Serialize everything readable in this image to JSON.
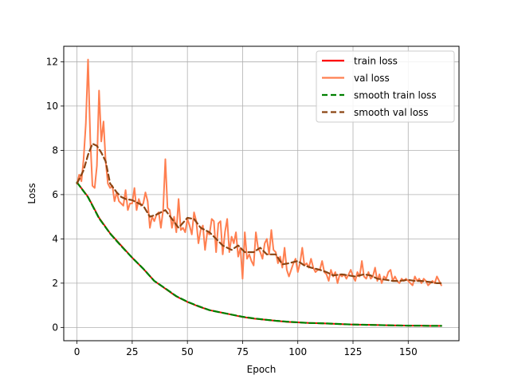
{
  "chart_data": {
    "type": "line",
    "title": "",
    "xlabel": "Epoch",
    "ylabel": "Loss",
    "xlim": [
      -6,
      173
    ],
    "ylim": [
      -0.6,
      12.7
    ],
    "xticks": [
      0,
      25,
      50,
      75,
      100,
      125,
      150
    ],
    "yticks": [
      0,
      2,
      4,
      6,
      8,
      10,
      12
    ],
    "grid": true,
    "legend_position": "upper right",
    "series": [
      {
        "name": "train loss",
        "color": "#ff0000",
        "style": "solid",
        "x": [
          0,
          5,
          10,
          15,
          20,
          25,
          30,
          35,
          40,
          45,
          50,
          55,
          60,
          65,
          70,
          75,
          80,
          85,
          90,
          95,
          100,
          105,
          110,
          115,
          120,
          125,
          130,
          135,
          140,
          145,
          150,
          155,
          160,
          165
        ],
        "values": [
          6.55,
          5.9,
          4.95,
          4.25,
          3.7,
          3.15,
          2.65,
          2.1,
          1.75,
          1.4,
          1.15,
          0.95,
          0.78,
          0.68,
          0.58,
          0.47,
          0.4,
          0.35,
          0.3,
          0.25,
          0.23,
          0.2,
          0.19,
          0.17,
          0.15,
          0.13,
          0.12,
          0.11,
          0.1,
          0.09,
          0.08,
          0.08,
          0.07,
          0.07
        ]
      },
      {
        "name": "val loss",
        "color": "#ff7f50",
        "style": "solid",
        "x": [
          0,
          1,
          2,
          3,
          4,
          5,
          6,
          7,
          8,
          9,
          10,
          11,
          12,
          13,
          14,
          15,
          16,
          17,
          18,
          19,
          20,
          21,
          22,
          23,
          24,
          25,
          26,
          27,
          28,
          29,
          30,
          31,
          32,
          33,
          34,
          35,
          36,
          37,
          38,
          39,
          40,
          41,
          42,
          43,
          44,
          45,
          46,
          47,
          48,
          49,
          50,
          51,
          52,
          53,
          54,
          55,
          56,
          57,
          58,
          59,
          60,
          61,
          62,
          63,
          64,
          65,
          66,
          67,
          68,
          69,
          70,
          71,
          72,
          73,
          74,
          75,
          76,
          77,
          78,
          79,
          80,
          81,
          82,
          83,
          84,
          85,
          86,
          87,
          88,
          89,
          90,
          91,
          92,
          93,
          94,
          95,
          96,
          97,
          98,
          99,
          100,
          101,
          102,
          103,
          104,
          105,
          106,
          107,
          108,
          109,
          110,
          111,
          112,
          113,
          114,
          115,
          116,
          117,
          118,
          119,
          120,
          121,
          122,
          123,
          124,
          125,
          126,
          127,
          128,
          129,
          130,
          131,
          132,
          133,
          134,
          135,
          136,
          137,
          138,
          139,
          140,
          141,
          142,
          143,
          144,
          145,
          146,
          147,
          148,
          149,
          150,
          151,
          152,
          153,
          154,
          155,
          156,
          157,
          158,
          159,
          160,
          161,
          162,
          163,
          164,
          165
        ],
        "values": [
          6.5,
          6.9,
          6.6,
          7.6,
          9.2,
          12.1,
          8.5,
          6.4,
          6.3,
          7.3,
          10.7,
          8.4,
          9.3,
          7.5,
          6.5,
          6.3,
          6.4,
          5.7,
          6.1,
          5.7,
          5.6,
          5.5,
          6.2,
          5.3,
          5.6,
          5.6,
          6.3,
          5.3,
          5.8,
          5.5,
          5.6,
          6.1,
          5.7,
          4.5,
          5.0,
          4.8,
          5.1,
          5.2,
          4.5,
          5.3,
          7.6,
          5.4,
          5.3,
          4.5,
          5.0,
          4.3,
          5.8,
          4.4,
          4.5,
          4.3,
          4.9,
          4.6,
          4.2,
          5.2,
          4.8,
          3.8,
          4.4,
          4.6,
          3.5,
          4.3,
          4.2,
          4.9,
          4.8,
          3.4,
          4.7,
          4.8,
          3.3,
          4.3,
          4.9,
          3.4,
          4.1,
          3.8,
          4.3,
          3.2,
          3.6,
          2.2,
          4.3,
          3.1,
          3.3,
          3.0,
          2.8,
          4.3,
          3.6,
          3.4,
          3.1,
          3.8,
          4.0,
          3.3,
          4.4,
          3.5,
          3.4,
          2.9,
          3.2,
          2.7,
          3.6,
          2.6,
          2.3,
          2.6,
          2.9,
          3.1,
          2.5,
          2.9,
          3.6,
          2.8,
          2.9,
          2.7,
          3.1,
          2.7,
          2.5,
          2.6,
          2.6,
          3.0,
          2.5,
          2.4,
          2.1,
          2.6,
          2.3,
          2.5,
          2.0,
          2.4,
          2.3,
          2.4,
          2.2,
          2.4,
          2.6,
          2.3,
          2.1,
          2.5,
          2.3,
          3.0,
          2.3,
          2.2,
          2.5,
          2.2,
          2.3,
          2.7,
          2.1,
          2.4,
          2.0,
          2.3,
          2.2,
          2.5,
          2.6,
          2.1,
          2.3,
          2.1,
          2.0,
          2.2,
          2.1,
          2.2,
          2.1,
          2.0,
          1.9,
          2.3,
          2.1,
          2.2,
          2.0,
          2.2,
          2.1,
          1.9,
          2.0,
          2.1,
          2.0,
          2.3,
          2.1,
          1.9
        ]
      },
      {
        "name": "smooth train loss",
        "color": "#008000",
        "style": "dashed",
        "x": [
          0,
          5,
          10,
          15,
          20,
          25,
          30,
          35,
          40,
          45,
          50,
          55,
          60,
          65,
          70,
          75,
          80,
          85,
          90,
          95,
          100,
          105,
          110,
          115,
          120,
          125,
          130,
          135,
          140,
          145,
          150,
          155,
          160,
          165
        ],
        "values": [
          6.55,
          5.88,
          4.93,
          4.24,
          3.68,
          3.15,
          2.65,
          2.1,
          1.76,
          1.41,
          1.16,
          0.96,
          0.78,
          0.68,
          0.58,
          0.48,
          0.41,
          0.35,
          0.3,
          0.26,
          0.23,
          0.2,
          0.19,
          0.17,
          0.15,
          0.13,
          0.12,
          0.11,
          0.1,
          0.09,
          0.08,
          0.08,
          0.07,
          0.07
        ]
      },
      {
        "name": "smooth val loss",
        "color": "#8b4513",
        "style": "dashed",
        "x": [
          0,
          3,
          5,
          7,
          9,
          11,
          13,
          15,
          18,
          20,
          22,
          25,
          28,
          30,
          33,
          36,
          40,
          43,
          46,
          50,
          53,
          56,
          60,
          63,
          66,
          70,
          73,
          76,
          80,
          83,
          86,
          90,
          93,
          96,
          100,
          103,
          106,
          110,
          113,
          116,
          120,
          123,
          126,
          130,
          133,
          136,
          140,
          143,
          146,
          150,
          153,
          156,
          160,
          163,
          165
        ],
        "values": [
          6.5,
          7.1,
          7.8,
          8.3,
          8.2,
          7.9,
          7.5,
          6.5,
          6.1,
          5.9,
          5.8,
          5.75,
          5.6,
          5.5,
          5.0,
          5.1,
          5.3,
          4.9,
          4.5,
          4.95,
          4.9,
          4.5,
          4.3,
          4.0,
          3.7,
          3.5,
          3.7,
          3.4,
          3.4,
          3.6,
          3.3,
          3.3,
          2.85,
          2.9,
          3.0,
          2.8,
          2.7,
          2.6,
          2.5,
          2.35,
          2.4,
          2.35,
          2.3,
          2.4,
          2.35,
          2.2,
          2.15,
          2.1,
          2.1,
          2.15,
          2.1,
          2.1,
          2.05,
          2.0,
          2.0
        ]
      }
    ]
  }
}
